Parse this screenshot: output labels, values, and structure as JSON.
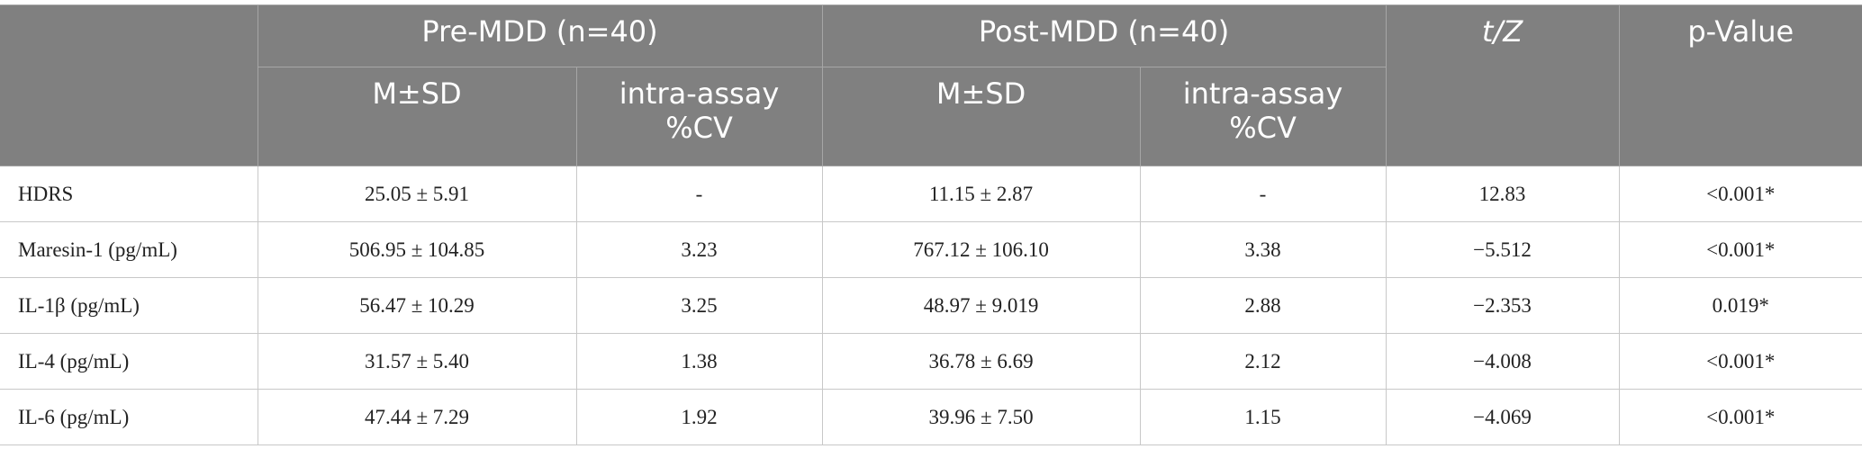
{
  "table": {
    "header": {
      "groups": [
        "Pre-MDD (n=40)",
        "Post-MDD (n=40)"
      ],
      "stat": "t/Z",
      "pvalue": "p-Value",
      "sub": [
        "M±SD",
        [
          "intra-assay",
          "%CV"
        ],
        "M±SD",
        [
          "intra-assay",
          "%CV"
        ]
      ]
    },
    "rows": [
      [
        "HDRS",
        "25.05 ± 5.91",
        "-",
        "11.15 ± 2.87",
        "-",
        "12.83",
        "<0.001*"
      ],
      [
        "Maresin-1 (pg/mL)",
        "506.95 ± 104.85",
        "3.23",
        "767.12 ± 106.10",
        "3.38",
        "−5.512",
        "<0.001*"
      ],
      [
        "IL-1β (pg/mL)",
        "56.47 ± 10.29",
        "3.25",
        "48.97 ± 9.019",
        "2.88",
        "−2.353",
        "0.019*"
      ],
      [
        "IL-4 (pg/mL)",
        "31.57 ± 5.40",
        "1.38",
        "36.78 ± 6.69",
        "2.12",
        "−4.008",
        "<0.001*"
      ],
      [
        "IL-6 (pg/mL)",
        "47.44 ± 7.29",
        "1.92",
        "39.96 ± 7.50",
        "1.15",
        "−4.069",
        "<0.001*"
      ]
    ]
  }
}
